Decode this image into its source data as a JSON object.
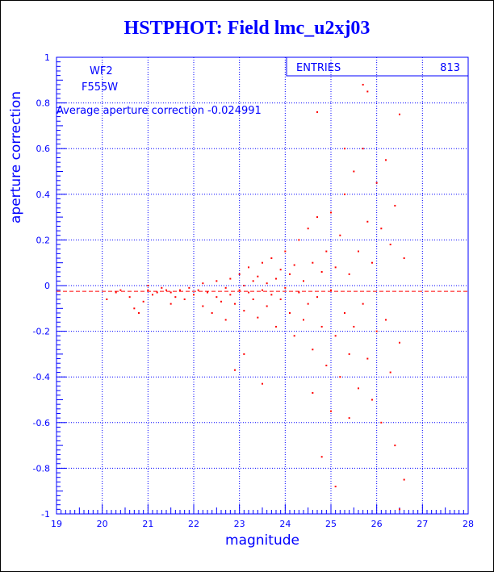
{
  "chart_data": {
    "type": "scatter",
    "title": "HSTPHOT: Field lmc_u2xj03",
    "xlabel": "magnitude",
    "ylabel": "aperture correction",
    "xlim": [
      19,
      28
    ],
    "ylim": [
      -1,
      1
    ],
    "x_ticks": [
      "19",
      "20",
      "21",
      "22",
      "23",
      "24",
      "25",
      "26",
      "27",
      "28"
    ],
    "y_ticks": [
      "1",
      "0.8",
      "0.6",
      "0.4",
      "0.2",
      "0",
      "-0.2",
      "-0.4",
      "-0.6",
      "-0.8",
      "-1"
    ],
    "grid": true,
    "annotations": {
      "camera": "WF2",
      "filter": "F555W",
      "average_text": "Average aperture correction -0.024991"
    },
    "stats_box": {
      "label": "ENTRIES",
      "value": "813"
    },
    "average_value": -0.024991,
    "colors": {
      "points": "#ff0000",
      "axes": "#0000ff",
      "average_line": "#ff0000"
    },
    "series": [
      {
        "points": [
          [
            20.1,
            -0.06
          ],
          [
            20.3,
            -0.03
          ],
          [
            20.4,
            -0.02
          ],
          [
            20.6,
            -0.05
          ],
          [
            20.7,
            -0.1
          ],
          [
            20.8,
            -0.12
          ],
          [
            20.9,
            -0.07
          ],
          [
            21.0,
            -0.02
          ],
          [
            21.0,
            0.0
          ],
          [
            21.1,
            -0.04
          ],
          [
            21.2,
            -0.03
          ],
          [
            21.3,
            -0.01
          ],
          [
            21.4,
            -0.02
          ],
          [
            21.5,
            -0.08
          ],
          [
            21.5,
            -0.03
          ],
          [
            21.6,
            -0.05
          ],
          [
            21.7,
            -0.02
          ],
          [
            21.8,
            -0.06
          ],
          [
            21.9,
            -0.01
          ],
          [
            22.0,
            -0.04
          ],
          [
            22.1,
            -0.02
          ],
          [
            22.2,
            -0.09
          ],
          [
            22.2,
            0.01
          ],
          [
            22.3,
            -0.03
          ],
          [
            22.4,
            -0.12
          ],
          [
            22.5,
            -0.05
          ],
          [
            22.5,
            0.02
          ],
          [
            22.6,
            -0.07
          ],
          [
            22.7,
            -0.01
          ],
          [
            22.7,
            -0.15
          ],
          [
            22.8,
            -0.04
          ],
          [
            22.8,
            0.03
          ],
          [
            22.9,
            -0.08
          ],
          [
            23.0,
            -0.02
          ],
          [
            23.0,
            0.05
          ],
          [
            23.1,
            -0.11
          ],
          [
            23.1,
            0.0
          ],
          [
            23.2,
            -0.03
          ],
          [
            23.2,
            0.08
          ],
          [
            23.3,
            -0.06
          ],
          [
            23.3,
            0.02
          ],
          [
            23.4,
            -0.14
          ],
          [
            23.4,
            0.04
          ],
          [
            23.5,
            -0.02
          ],
          [
            23.5,
            0.1
          ],
          [
            23.6,
            -0.09
          ],
          [
            23.6,
            0.01
          ],
          [
            23.7,
            -0.04
          ],
          [
            23.7,
            0.12
          ],
          [
            23.8,
            -0.18
          ],
          [
            23.8,
            0.03
          ],
          [
            23.9,
            -0.06
          ],
          [
            23.9,
            0.07
          ],
          [
            24.0,
            -0.01
          ],
          [
            24.0,
            0.15
          ],
          [
            24.1,
            -0.12
          ],
          [
            24.1,
            0.05
          ],
          [
            24.2,
            -0.22
          ],
          [
            24.2,
            0.09
          ],
          [
            24.3,
            -0.03
          ],
          [
            24.3,
            0.2
          ],
          [
            24.4,
            -0.15
          ],
          [
            24.4,
            0.02
          ],
          [
            24.5,
            -0.08
          ],
          [
            24.5,
            0.25
          ],
          [
            24.6,
            -0.28
          ],
          [
            24.6,
            0.1
          ],
          [
            24.7,
            -0.05
          ],
          [
            24.7,
            0.3
          ],
          [
            24.8,
            -0.18
          ],
          [
            24.8,
            0.06
          ],
          [
            24.9,
            -0.35
          ],
          [
            24.9,
            0.15
          ],
          [
            25.0,
            -0.02
          ],
          [
            25.0,
            0.32
          ],
          [
            25.1,
            -0.22
          ],
          [
            25.1,
            0.08
          ],
          [
            25.2,
            -0.4
          ],
          [
            25.2,
            0.22
          ],
          [
            25.3,
            -0.12
          ],
          [
            25.3,
            0.4
          ],
          [
            25.4,
            -0.3
          ],
          [
            25.4,
            0.05
          ],
          [
            25.5,
            -0.18
          ],
          [
            25.5,
            0.5
          ],
          [
            25.6,
            -0.45
          ],
          [
            25.6,
            0.15
          ],
          [
            25.7,
            -0.08
          ],
          [
            25.7,
            0.6
          ],
          [
            25.8,
            -0.32
          ],
          [
            25.8,
            0.28
          ],
          [
            25.9,
            -0.5
          ],
          [
            25.9,
            0.1
          ],
          [
            26.0,
            -0.2
          ],
          [
            26.0,
            0.45
          ],
          [
            26.1,
            -0.6
          ],
          [
            26.1,
            0.25
          ],
          [
            26.2,
            -0.15
          ],
          [
            26.2,
            0.55
          ],
          [
            26.3,
            -0.38
          ],
          [
            26.3,
            0.18
          ],
          [
            26.4,
            -0.7
          ],
          [
            26.4,
            0.35
          ],
          [
            26.5,
            -0.25
          ],
          [
            26.5,
            0.75
          ],
          [
            26.6,
            -0.85
          ],
          [
            26.6,
            0.12
          ],
          [
            25.7,
            0.88
          ],
          [
            25.8,
            0.85
          ],
          [
            26.5,
            -0.98
          ],
          [
            22.9,
            -0.37
          ],
          [
            23.5,
            -0.43
          ],
          [
            24.6,
            -0.47
          ],
          [
            25.0,
            -0.55
          ],
          [
            25.4,
            -0.58
          ],
          [
            24.8,
            -0.75
          ],
          [
            25.1,
            -0.88
          ],
          [
            25.3,
            0.6
          ],
          [
            24.7,
            0.76
          ],
          [
            23.1,
            -0.3
          ]
        ]
      }
    ]
  }
}
